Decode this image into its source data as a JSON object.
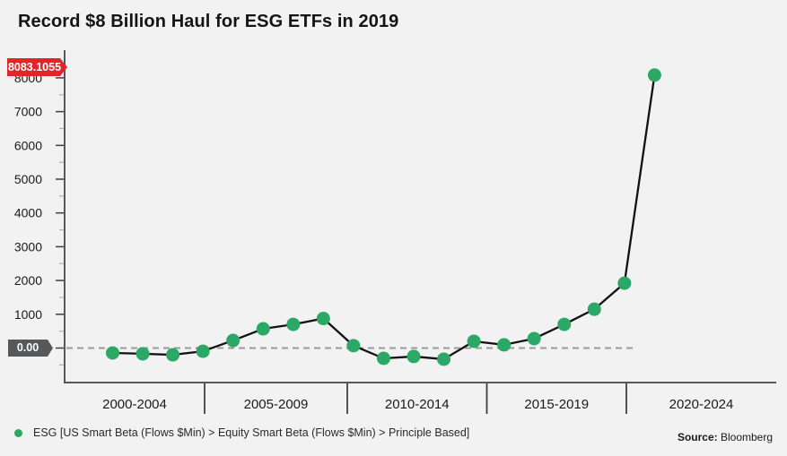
{
  "title": "Record $8 Billion Haul for ESG ETFs in 2019",
  "colors": {
    "background": "#f2f2f2",
    "accent_green": "#2ca866",
    "badge_red": "#e2252b",
    "badge_dark_gray": "#57585a",
    "series_line": "#111111",
    "zero_dash_line": "#9a9a9a",
    "axis_line": "#58585a",
    "tick_major": "#3f3f3f",
    "tick_minor": "#b3b3b3",
    "label_text": "#1a1a1a"
  },
  "badges": {
    "last_value": "8083.1055",
    "zero_value": "0.00"
  },
  "chart_data": {
    "type": "line",
    "title": "Record $8 Billion Haul for ESG ETFs in 2019",
    "x": [
      2001,
      2002,
      2003,
      2004,
      2005,
      2006,
      2007,
      2008,
      2009,
      2010,
      2011,
      2012,
      2013,
      2014,
      2015,
      2016,
      2017,
      2018,
      2019
    ],
    "series": [
      {
        "name": "ESG [US Smart Beta (Flows $Min) > Equity Smart Beta (Flows $Min) > Principle Based]",
        "values": [
          -145,
          -170,
          -200,
          -95,
          225,
          570,
          700,
          875,
          70,
          -305,
          -250,
          -330,
          200,
          95,
          280,
          700,
          1150,
          1920,
          8083.1055
        ]
      }
    ],
    "x_tick_labels": [
      "2000-2004",
      "2005-2009",
      "2010-2014",
      "2015-2019",
      "2020-2024"
    ],
    "y_ticks": [
      0,
      1000,
      2000,
      3000,
      4000,
      5000,
      6000,
      7000,
      8000
    ],
    "y_minor_tick_step": 500,
    "ylim": [
      -1020,
      8820
    ],
    "grid": false,
    "zero_reference_line": true,
    "last_point_label": "8083.1055",
    "marker": "circle",
    "legend_position": "bottom-left"
  },
  "legend": {
    "marker": "green-dot",
    "label": "ESG [US Smart Beta (Flows $Min) > Equity Smart Beta (Flows $Min) > Principle Based]"
  },
  "footer": {
    "source_label": "Source:",
    "source_value": "Bloomberg"
  }
}
